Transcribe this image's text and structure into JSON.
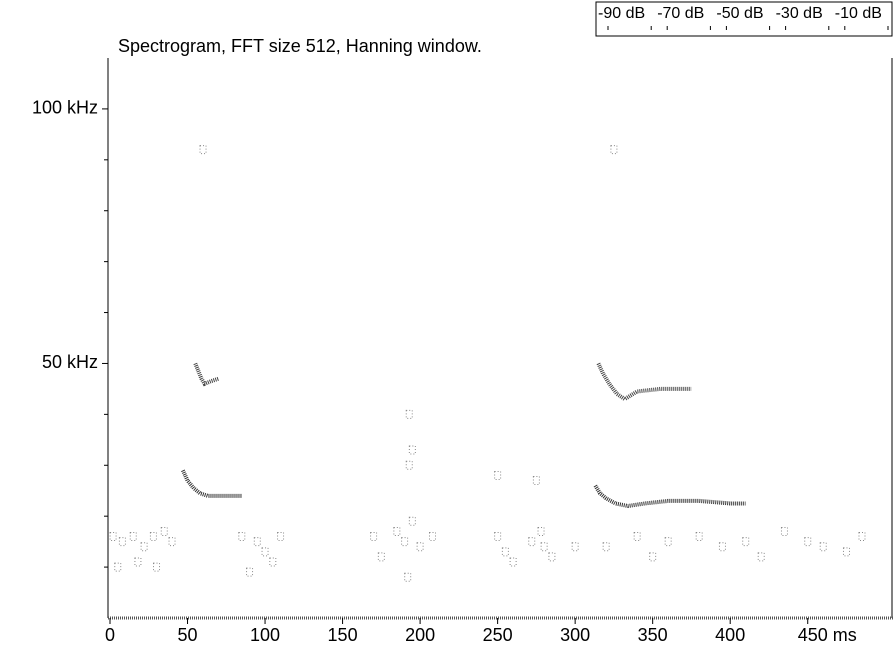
{
  "chart_data": {
    "type": "spectrogram",
    "title": "Spectrogram, FFT size 512, Hanning window.",
    "xlim": [
      0,
      505
    ],
    "xticks": [
      0,
      50,
      100,
      150,
      200,
      250,
      300,
      350,
      400,
      {
        "value": 450,
        "label": "450 ms"
      }
    ],
    "ylim": [
      0,
      110
    ],
    "yticks": [
      {
        "value": 50,
        "label": "50 kHz"
      },
      {
        "value": 100,
        "label": "100 kHz"
      }
    ],
    "yminor_ticks": [
      10,
      20,
      30,
      40,
      60,
      70,
      80,
      90
    ],
    "colorbar": {
      "labels": [
        "-90 dB",
        "-70 dB",
        "-50 dB",
        "-30 dB",
        "-10 dB"
      ]
    },
    "traces": [
      {
        "color": "#333333",
        "x": [
          47,
          50,
          54,
          58,
          63,
          70,
          78,
          85
        ],
        "y": [
          29,
          27,
          25.5,
          24.5,
          24,
          24,
          24,
          24
        ]
      },
      {
        "color": "#444444",
        "x": [
          55,
          57,
          59,
          61,
          65,
          70
        ],
        "y": [
          50,
          48.5,
          47,
          46,
          46.5,
          47
        ]
      },
      {
        "color": "#333333",
        "x": [
          313,
          316,
          320,
          326,
          334,
          345,
          360,
          380,
          400,
          410
        ],
        "y": [
          26,
          24.5,
          23.5,
          22.5,
          22,
          22.5,
          23,
          23,
          22.5,
          22.5
        ]
      },
      {
        "color": "#444444",
        "x": [
          315,
          318,
          322,
          327,
          332,
          340,
          355,
          375
        ],
        "y": [
          50,
          48,
          46,
          44,
          43,
          44.5,
          45,
          45
        ]
      }
    ],
    "points": {
      "color": "#888888",
      "x": [
        2,
        8,
        15,
        22,
        28,
        35,
        40,
        5,
        18,
        30,
        85,
        95,
        100,
        105,
        110,
        90,
        170,
        175,
        185,
        190,
        195,
        200,
        192,
        193,
        195,
        208,
        250,
        255,
        260,
        272,
        278,
        280,
        285,
        275,
        250,
        300,
        320,
        340,
        350,
        360,
        380,
        395,
        410,
        420,
        435,
        450,
        460,
        475,
        485,
        60,
        325,
        193
      ],
      "y": [
        16,
        15,
        16,
        14,
        16,
        17,
        15,
        10,
        11,
        10,
        16,
        15,
        13,
        11,
        16,
        9,
        16,
        12,
        17,
        15,
        19,
        14,
        8,
        30,
        33,
        16,
        16,
        13,
        11,
        15,
        17,
        14,
        12,
        27,
        28,
        14,
        14,
        16,
        12,
        15,
        16,
        14,
        15,
        12,
        17,
        15,
        14,
        13,
        16,
        92,
        92,
        40
      ]
    }
  }
}
